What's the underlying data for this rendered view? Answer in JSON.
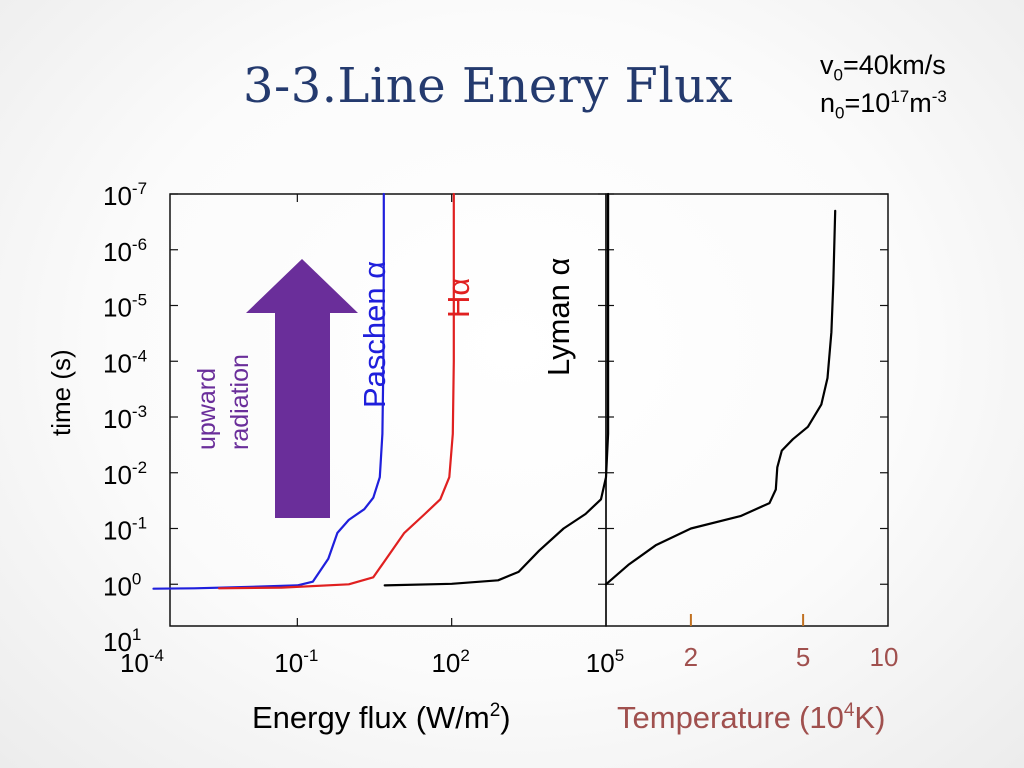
{
  "title": "3-3.Line Enery Flux",
  "params": {
    "v0": {
      "base": "v",
      "sub": "0",
      "rest": "=40km/s"
    },
    "n0": {
      "base": "n",
      "sub": "0",
      "eq": "=10",
      "sup": "17",
      "unit": "m",
      "unit_sup": "-3"
    }
  },
  "colors": {
    "paschen": "#1f1fdc",
    "halpha": "#e02020",
    "lyman": "#000000",
    "arrow": "#6a2e9a",
    "temperature_label": "#a0504e",
    "temp_ticks": "#c07020",
    "title": "#243a6e"
  },
  "chart_data": [
    {
      "type": "line",
      "panel": "left",
      "xlabel": "Energy flux (W/m",
      "xlabel_sup": "2",
      "xlabel_tail": ")",
      "ylabel": "time (s)",
      "x_scale": "log",
      "y_scale": "log",
      "y_inverted": true,
      "xlim": [
        0.0001,
        100000
      ],
      "ylim": [
        1e-07,
        10
      ],
      "x_ticks": [
        {
          "value": 0.0001,
          "base": "10",
          "exp": "-4"
        },
        {
          "value": 0.1,
          "base": "10",
          "exp": "-1"
        },
        {
          "value": 100,
          "base": "10",
          "exp": "2"
        },
        {
          "value": 100000,
          "base": "10",
          "exp": "5"
        }
      ],
      "y_ticks": [
        {
          "value": 1e-07,
          "base": "10",
          "exp": "-7"
        },
        {
          "value": 1e-06,
          "base": "10",
          "exp": "-6"
        },
        {
          "value": 1e-05,
          "base": "10",
          "exp": "-5"
        },
        {
          "value": 0.0001,
          "base": "10",
          "exp": "-4"
        },
        {
          "value": 0.001,
          "base": "10",
          "exp": "-3"
        },
        {
          "value": 0.01,
          "base": "10",
          "exp": "-2"
        },
        {
          "value": 0.1,
          "base": "10",
          "exp": "-1"
        },
        {
          "value": 1,
          "base": "10",
          "exp": "0"
        },
        {
          "value": 10,
          "base": "10",
          "exp": "1"
        }
      ],
      "series": [
        {
          "name": "Paschen α",
          "color": "#1f1fdc",
          "points": [
            [
              0.00016,
              1.2
            ],
            [
              0.001,
              1.18
            ],
            [
              0.01,
              1.12
            ],
            [
              0.1,
              1.05
            ],
            [
              0.2,
              0.9
            ],
            [
              0.4,
              0.35
            ],
            [
              0.6,
              0.12
            ],
            [
              1.0,
              0.07
            ],
            [
              2.0,
              0.045
            ],
            [
              3.0,
              0.028
            ],
            [
              4.0,
              0.012
            ],
            [
              4.5,
              0.002
            ],
            [
              4.7,
              0.0001
            ],
            [
              4.8,
              1e-06
            ],
            [
              4.8,
              1e-07
            ]
          ]
        },
        {
          "name": "Hα",
          "color": "#e02020",
          "points": [
            [
              0.003,
              1.18
            ],
            [
              0.05,
              1.15
            ],
            [
              1.0,
              1.0
            ],
            [
              3.0,
              0.75
            ],
            [
              6.0,
              0.3
            ],
            [
              12,
              0.12
            ],
            [
              30,
              0.055
            ],
            [
              60,
              0.03
            ],
            [
              90,
              0.012
            ],
            [
              105,
              0.002
            ],
            [
              110,
              0.0001
            ],
            [
              110,
              1e-06
            ],
            [
              110,
              1e-07
            ]
          ]
        },
        {
          "name": "Lyman α",
          "color": "#000000",
          "points": [
            [
              5,
              1.05
            ],
            [
              100,
              0.98
            ],
            [
              800,
              0.85
            ],
            [
              2000,
              0.6
            ],
            [
              5000,
              0.25
            ],
            [
              15000,
              0.1
            ],
            [
              40000,
              0.055
            ],
            [
              80000,
              0.03
            ],
            [
              100000,
              0.012
            ],
            [
              110000,
              0.002
            ],
            [
              110000,
              0.0001
            ],
            [
              110000,
              1e-07
            ]
          ]
        }
      ]
    },
    {
      "type": "line",
      "panel": "right",
      "xlabel": "Temperature",
      "xlabel_unit_prefix": "(10",
      "xlabel_unit_sup": "4",
      "xlabel_unit_tail": "K)",
      "x_scale": "log",
      "y_scale": "log",
      "y_inverted": true,
      "xlim": [
        1,
        10
      ],
      "ylim": [
        1e-07,
        10
      ],
      "x_ticks": [
        {
          "value": 2,
          "label": "2"
        },
        {
          "value": 5,
          "label": "5"
        },
        {
          "value": 10,
          "label": "10"
        }
      ],
      "series": [
        {
          "name": "",
          "color": "#000000",
          "points": [
            [
              1.0,
              1.0
            ],
            [
              1.2,
              0.45
            ],
            [
              1.5,
              0.2
            ],
            [
              2.0,
              0.1
            ],
            [
              3.0,
              0.06
            ],
            [
              3.8,
              0.035
            ],
            [
              4.0,
              0.02
            ],
            [
              4.05,
              0.008
            ],
            [
              4.2,
              0.004
            ],
            [
              4.6,
              0.0025
            ],
            [
              5.2,
              0.0015
            ],
            [
              5.8,
              0.0006
            ],
            [
              6.1,
              0.0002
            ],
            [
              6.3,
              3e-05
            ],
            [
              6.4,
              4e-06
            ],
            [
              6.5,
              2e-07
            ]
          ]
        }
      ]
    }
  ],
  "annotations": {
    "arrow_label_1": "upward",
    "arrow_label_2": "radiation",
    "paschen": "Paschen α",
    "halpha": "Hα",
    "lyman": "Lyman α"
  }
}
